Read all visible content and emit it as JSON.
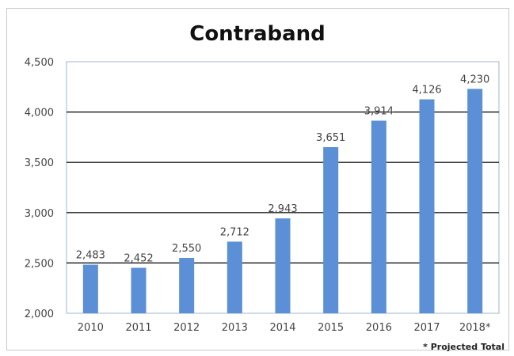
{
  "chart_data": {
    "type": "bar",
    "title": "Contraband",
    "categories": [
      "2010",
      "2011",
      "2012",
      "2013",
      "2014",
      "2015",
      "2016",
      "2017",
      "2018*"
    ],
    "values": [
      2483,
      2452,
      2550,
      2712,
      2943,
      3651,
      3914,
      4126,
      4230
    ],
    "value_labels": [
      "2,483",
      "2,452",
      "2,550",
      "2,712",
      "2,943",
      "3,651",
      "3,914",
      "4,126",
      "4,230"
    ],
    "ylim": [
      2000,
      4500
    ],
    "y_ticks": [
      2000,
      2500,
      3000,
      3500,
      4000,
      4500
    ],
    "y_tick_labels": [
      "2,000",
      "2,500",
      "3,000",
      "3,500",
      "4,000",
      "4,500"
    ],
    "xlabel": "",
    "ylabel": "",
    "grid": true,
    "footnote": "* Projected Total",
    "colors": {
      "bar": "#5b8fd6",
      "grid": "#000000",
      "axis": "#9fb5d6"
    }
  }
}
